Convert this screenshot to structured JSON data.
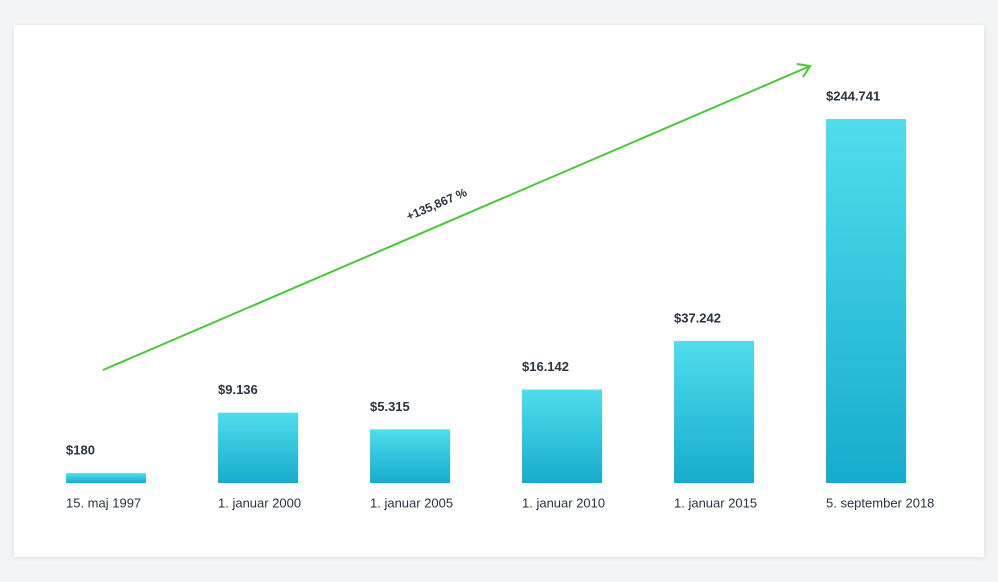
{
  "chart_data": {
    "type": "bar",
    "categories": [
      "15. maj 1997",
      "1. januar 2000",
      "1. januar 2005",
      "1. januar 2010",
      "1. januar 2015",
      "5. september 2018"
    ],
    "values": [
      180,
      9136,
      5315,
      16142,
      37242,
      244741
    ],
    "value_labels": [
      "$180",
      "$9.136",
      "$5.315",
      "$16.142",
      "$37.242",
      "$244.741"
    ],
    "annotation": "+135,867 %",
    "color": "#1fb5d4"
  }
}
